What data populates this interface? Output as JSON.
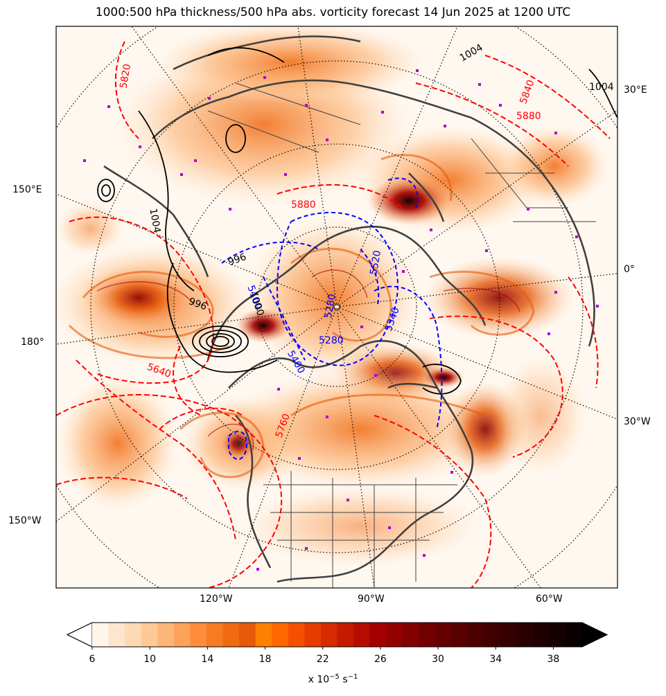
{
  "title": "1000:500 hPa thickness/500 hPa abs. vorticity forecast 14 Jun 2025 at 1200 UTC",
  "lon_labels_right": [
    "30°E",
    "0°",
    "30°W"
  ],
  "lon_labels_left": [
    "150°E",
    "180°",
    "150°W"
  ],
  "lon_labels_bottom": [
    "120°W",
    "90°W",
    "60°W"
  ],
  "thickness_labels_red": [
    "5820",
    "5840",
    "5880",
    "5880",
    "5640",
    "5760"
  ],
  "thickness_labels_blue": [
    "5280",
    "5280",
    "5400",
    "5400",
    "5340",
    "5520"
  ],
  "pressure_labels_black": [
    "1004",
    "1004",
    "996",
    "996",
    "1004",
    "1000"
  ],
  "colorbar": {
    "ticks": [
      "6",
      "10",
      "14",
      "18",
      "22",
      "26",
      "30",
      "34",
      "38"
    ],
    "unit_base": "x 10",
    "unit_exp": "−5",
    "unit_tail": " s",
    "unit_exp2": "−1",
    "colors": [
      "#fff5eb",
      "#fee6ce",
      "#fdd9b4",
      "#fdc996",
      "#fdb678",
      "#fda25a",
      "#fd8d3c",
      "#f87b24",
      "#f06a12",
      "#e65a0a",
      "#ff7f00",
      "#ff6600",
      "#f55000",
      "#e63c00",
      "#d62b00",
      "#c61a00",
      "#b40c00",
      "#a30000",
      "#920000",
      "#820000",
      "#730000",
      "#650000",
      "#580000",
      "#4c0000",
      "#400000",
      "#340000",
      "#280000",
      "#1e0000",
      "#140000",
      "#0a0000"
    ]
  },
  "colors": {
    "thickness_warm": "#ff0000",
    "thickness_cold": "#0000ff",
    "pressure": "#000000",
    "coast": "#404040",
    "markers": "#b000d0"
  }
}
